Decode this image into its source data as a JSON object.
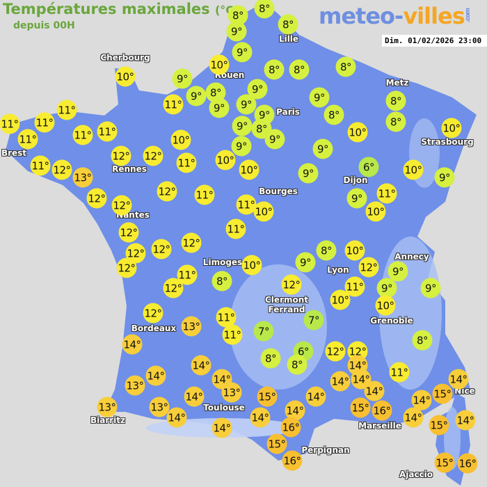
{
  "header": {
    "title": "Températures maximales",
    "unit": "(°C)",
    "subtitle": "depuis 00H",
    "logo": {
      "part1": "meteo-",
      "part2": "villes",
      "suffix": ".com"
    },
    "datetime": "Dim. 01/02/2026 23:00"
  },
  "colors": {
    "land": "#6f8fe8",
    "relief": "#a9bff2",
    "sea": "#dcdcdc",
    "temp_6_7": "#b8e84a",
    "temp_8_9": "#d6f040",
    "temp_10_12": "#f8ec30",
    "temp_13_14": "#f8ce3a",
    "temp_15_16": "#f8c030"
  },
  "cities": [
    "Cherbourg",
    "Lille",
    "Rouen",
    "Paris",
    "Metz",
    "Strasbourg",
    "Brest",
    "Rennes",
    "Dijon",
    "Nantes",
    "Bourges",
    "Limoges",
    "Lyon",
    "Annecy",
    "Clermont\nFerrand",
    "Grenoble",
    "Bordeaux",
    "Nice",
    "Toulouse",
    "Biarritz",
    "Marseille",
    "Perpignan",
    "Ajaccio"
  ],
  "readings": [
    8,
    8,
    9,
    8,
    9,
    10,
    9,
    9,
    8,
    9,
    9,
    9,
    9,
    8,
    9,
    9,
    9,
    8,
    8,
    8,
    9,
    8,
    8,
    8,
    10,
    10,
    9,
    6,
    10,
    9,
    9,
    11,
    10,
    9,
    10,
    10,
    11,
    10,
    11,
    10,
    11,
    11,
    11,
    11,
    11,
    11,
    12,
    12,
    11,
    12,
    13,
    12,
    12,
    12,
    11,
    11,
    10,
    11,
    12,
    12,
    12,
    12,
    12,
    11,
    12,
    8,
    10,
    9,
    8,
    10,
    12,
    11,
    9,
    9,
    9,
    12,
    10,
    10,
    12,
    13,
    11,
    11,
    7,
    7,
    8,
    14,
    6,
    8,
    8,
    12,
    12,
    14,
    11,
    14,
    14,
    13,
    14,
    14,
    14,
    14,
    15,
    14,
    13,
    15,
    14,
    14,
    15,
    14,
    13,
    13,
    14,
    14,
    14,
    16,
    14,
    15,
    14,
    14,
    16,
    15,
    16,
    15,
    16
  ],
  "unit_symbol": "°"
}
